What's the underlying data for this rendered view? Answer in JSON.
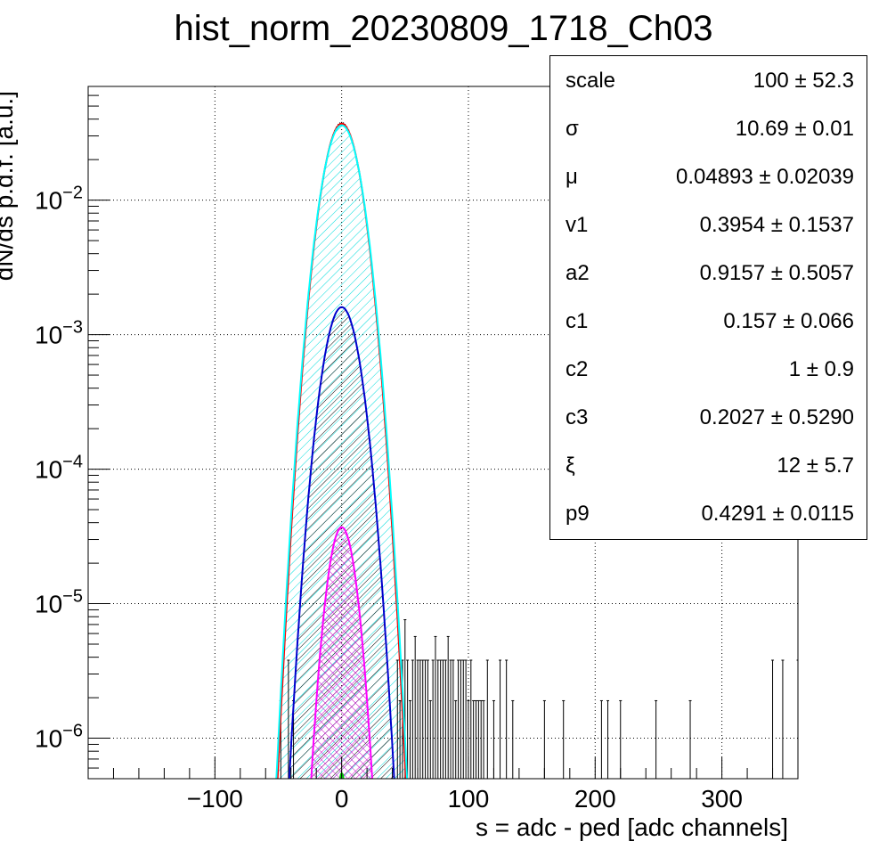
{
  "title": "hist_norm_20230809_1718_Ch03",
  "colors": {
    "histogram": "#000000",
    "total_fit": "#ff0000",
    "component_1": "#00ffff",
    "component_2": "#0000cc",
    "component_3": "#ff00ff",
    "component_4": "#00cc00"
  },
  "stats": [
    {
      "name": "scale",
      "value": "100 ± 52.3"
    },
    {
      "name": "σ",
      "value": "10.69 ± 0.01"
    },
    {
      "name": "μ",
      "value": "0.04893 ± 0.02039"
    },
    {
      "name": "v1",
      "value": "0.3954 ± 0.1537"
    },
    {
      "name": "a2",
      "value": "0.9157 ± 0.5057"
    },
    {
      "name": "c1",
      "value": "0.157 ± 0.066"
    },
    {
      "name": "c2",
      "value": "1 ± 0.9"
    },
    {
      "name": "c3",
      "value": "0.2027 ± 0.5290"
    },
    {
      "name": "ξ",
      "value": "12 ± 5.7"
    },
    {
      "name": "p9",
      "value": "0.4291 ± 0.0115"
    }
  ],
  "chart_data": {
    "type": "line",
    "title": "hist_norm_20230809_1718_Ch03",
    "xlabel": "s = adc - ped [adc channels]",
    "ylabel": "dN/ds p.d.f. [a.u.]",
    "xlim": [
      -200,
      360
    ],
    "ylim": [
      5e-07,
      0.07
    ],
    "yscale": "log",
    "grid": true,
    "x_ticks": [
      -100,
      0,
      100,
      200,
      300
    ],
    "x_tick_labels": [
      "−100",
      "0",
      "100",
      "200",
      "300"
    ],
    "y_ticks": [
      1e-06,
      1e-05,
      0.0001,
      0.001,
      0.01
    ],
    "y_tick_bases": [
      "10",
      "10",
      "10",
      "10",
      "10"
    ],
    "y_tick_exps": [
      "−6",
      "−5",
      "−4",
      "−3",
      "−2"
    ],
    "series": [
      {
        "color": "#ff0000",
        "peak": 0.037,
        "mean": 0.05,
        "sigma": 10.69,
        "fill": "none"
      },
      {
        "color": "#00ffff",
        "peak": 0.036,
        "mean": 0.05,
        "sigma": 10.9,
        "fill": "hatch"
      },
      {
        "color": "#0000cc",
        "peak": 0.0016,
        "mean": 0.05,
        "sigma": 10.3,
        "fill": "hatch"
      },
      {
        "color": "#ff00ff",
        "peak": 3.7e-05,
        "mean": 0.05,
        "sigma": 8.2,
        "fill": "crosshatch"
      },
      {
        "color": "#00cc00",
        "peak": 5.5e-07,
        "mean": 0.05,
        "sigma": 3.0,
        "fill": "none"
      }
    ],
    "histogram_tail": {
      "x": [
        -48,
        -42,
        -38,
        44,
        46,
        48,
        50,
        52,
        54,
        56,
        58,
        60,
        62,
        64,
        66,
        68,
        70,
        72,
        74,
        76,
        78,
        80,
        82,
        84,
        86,
        88,
        90,
        92,
        94,
        96,
        98,
        100,
        102,
        104,
        106,
        108,
        110,
        112,
        115,
        120,
        125,
        130,
        135,
        160,
        175,
        205,
        210,
        220,
        248,
        275,
        340,
        348,
        360
      ],
      "y": [
        1.9e-06,
        3.8e-06,
        1.9e-06,
        3.8e-06,
        1.9e-06,
        3.8e-06,
        7.6e-06,
        3.8e-06,
        1.9e-06,
        3.8e-06,
        5.7e-06,
        3.8e-06,
        3.8e-06,
        3.8e-06,
        3.8e-06,
        3.8e-06,
        1.9e-06,
        3.8e-06,
        5.7e-06,
        3.8e-06,
        3.8e-06,
        3.8e-06,
        3.8e-06,
        5.7e-06,
        3.8e-06,
        3.8e-06,
        1.9e-06,
        3.8e-06,
        3.8e-06,
        3.8e-06,
        3.8e-06,
        1.9e-06,
        3.8e-06,
        1.9e-06,
        1.9e-06,
        1.9e-06,
        1.9e-06,
        1.9e-06,
        3.8e-06,
        1.9e-06,
        3.8e-06,
        3.8e-06,
        1.9e-06,
        1.9e-06,
        1.9e-06,
        1.9e-06,
        1.9e-06,
        1.9e-06,
        1.9e-06,
        1.9e-06,
        3.8e-06,
        3.8e-06,
        3.8e-06
      ]
    }
  }
}
